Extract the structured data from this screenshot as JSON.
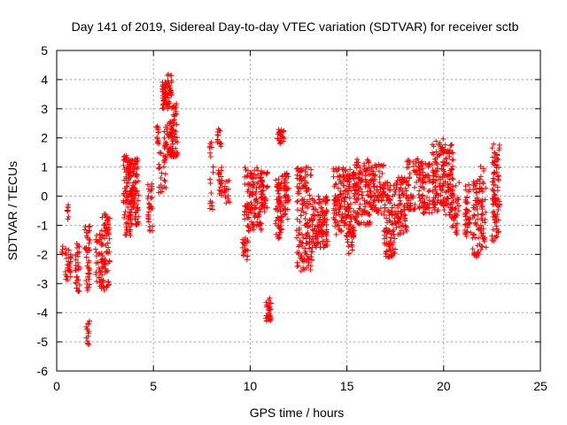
{
  "chart_data": {
    "type": "scatter",
    "title": "Day 141 of 2019, Sidereal Day-to-day VTEC variation (SDTVAR) for receiver sctb",
    "xlabel": "GPS time / hours",
    "ylabel": "SDTVAR / TECUs",
    "xlim": [
      0,
      25
    ],
    "ylim": [
      -6,
      5
    ],
    "xticks": [
      0,
      5,
      10,
      15,
      20,
      25
    ],
    "yticks": [
      -6,
      -5,
      -4,
      -3,
      -2,
      -1,
      0,
      1,
      2,
      3,
      4,
      5
    ],
    "x_tick_labels": [
      "0",
      "5",
      "10",
      "15",
      "20",
      "25"
    ],
    "y_tick_labels": [
      "-6",
      "-5",
      "-4",
      "-3",
      "-2",
      "-1",
      "0",
      "1",
      "2",
      "3",
      "4",
      "5"
    ],
    "grid": true,
    "marker": "+",
    "color": "#ff0000",
    "series": [
      {
        "name": "SDTVAR",
        "clusters": [
          {
            "x0": 0.25,
            "x1": 0.35,
            "ymin": -2.0,
            "ymax": -1.7,
            "n": 4
          },
          {
            "x0": 0.45,
            "x1": 0.75,
            "ymin": -2.9,
            "ymax": -1.8,
            "n": 30
          },
          {
            "x0": 0.5,
            "x1": 0.65,
            "ymin": -0.8,
            "ymax": -0.3,
            "n": 8
          },
          {
            "x0": 0.95,
            "x1": 1.2,
            "ymin": -3.3,
            "ymax": -1.6,
            "n": 30
          },
          {
            "x0": 1.45,
            "x1": 1.75,
            "ymin": -3.3,
            "ymax": -1.0,
            "n": 40
          },
          {
            "x0": 1.5,
            "x1": 1.7,
            "ymin": -5.1,
            "ymax": -4.1,
            "n": 14
          },
          {
            "x0": 2.0,
            "x1": 2.4,
            "ymin": -3.2,
            "ymax": -1.3,
            "n": 40
          },
          {
            "x0": 2.3,
            "x1": 2.75,
            "ymin": -3.3,
            "ymax": -0.6,
            "n": 70
          },
          {
            "x0": 3.45,
            "x1": 3.85,
            "ymin": -1.4,
            "ymax": 1.4,
            "n": 90
          },
          {
            "x0": 3.8,
            "x1": 4.25,
            "ymin": -1.0,
            "ymax": 1.3,
            "n": 90
          },
          {
            "x0": 4.7,
            "x1": 4.95,
            "ymin": -1.3,
            "ymax": 0.5,
            "n": 30
          },
          {
            "x0": 5.1,
            "x1": 5.3,
            "ymin": 1.7,
            "ymax": 2.4,
            "n": 12
          },
          {
            "x0": 5.25,
            "x1": 5.7,
            "ymin": 0.0,
            "ymax": 1.5,
            "n": 25
          },
          {
            "x0": 5.45,
            "x1": 5.95,
            "ymin": 3.0,
            "ymax": 4.2,
            "n": 70
          },
          {
            "x0": 5.55,
            "x1": 6.05,
            "ymin": 1.3,
            "ymax": 2.6,
            "n": 45
          },
          {
            "x0": 5.9,
            "x1": 6.25,
            "ymin": 1.3,
            "ymax": 3.2,
            "n": 50
          },
          {
            "x0": 7.9,
            "x1": 8.1,
            "ymin": -0.6,
            "ymax": 1.9,
            "n": 18
          },
          {
            "x0": 8.3,
            "x1": 8.5,
            "ymin": 1.7,
            "ymax": 2.4,
            "n": 14
          },
          {
            "x0": 8.35,
            "x1": 8.6,
            "ymin": -0.1,
            "ymax": 1.0,
            "n": 20
          },
          {
            "x0": 8.65,
            "x1": 8.95,
            "ymin": -0.3,
            "ymax": 0.6,
            "n": 16
          },
          {
            "x0": 9.6,
            "x1": 9.9,
            "ymin": -2.2,
            "ymax": -1.4,
            "n": 22
          },
          {
            "x0": 9.7,
            "x1": 10.6,
            "ymin": -1.2,
            "ymax": 1.0,
            "n": 120
          },
          {
            "x0": 10.55,
            "x1": 10.9,
            "ymin": -0.6,
            "ymax": 0.9,
            "n": 40
          },
          {
            "x0": 10.8,
            "x1": 11.1,
            "ymin": -4.3,
            "ymax": -3.5,
            "n": 28
          },
          {
            "x0": 11.3,
            "x1": 11.65,
            "ymin": -1.6,
            "ymax": 0.6,
            "n": 60
          },
          {
            "x0": 11.4,
            "x1": 11.75,
            "ymin": 1.8,
            "ymax": 2.3,
            "n": 28
          },
          {
            "x0": 11.6,
            "x1": 12.0,
            "ymin": -0.8,
            "ymax": 0.8,
            "n": 50
          },
          {
            "x0": 12.4,
            "x1": 13.2,
            "ymin": -2.6,
            "ymax": 1.0,
            "n": 150
          },
          {
            "x0": 13.2,
            "x1": 14.0,
            "ymin": -1.8,
            "ymax": 0.0,
            "n": 120
          },
          {
            "x0": 14.3,
            "x1": 15.4,
            "ymin": -1.4,
            "ymax": 1.0,
            "n": 170
          },
          {
            "x0": 15.0,
            "x1": 15.4,
            "ymin": -2.0,
            "ymax": -1.0,
            "n": 18
          },
          {
            "x0": 15.4,
            "x1": 16.2,
            "ymin": -1.0,
            "ymax": 1.3,
            "n": 120
          },
          {
            "x0": 16.2,
            "x1": 16.9,
            "ymin": -0.6,
            "ymax": 1.1,
            "n": 80
          },
          {
            "x0": 16.9,
            "x1": 17.5,
            "ymin": -2.1,
            "ymax": 0.5,
            "n": 100
          },
          {
            "x0": 17.5,
            "x1": 18.1,
            "ymin": -1.5,
            "ymax": 0.7,
            "n": 80
          },
          {
            "x0": 18.1,
            "x1": 18.8,
            "ymin": -0.5,
            "ymax": 1.3,
            "n": 60
          },
          {
            "x0": 18.8,
            "x1": 19.3,
            "ymin": -0.6,
            "ymax": 1.2,
            "n": 60
          },
          {
            "x0": 19.4,
            "x1": 20.0,
            "ymin": -0.6,
            "ymax": 2.0,
            "n": 100
          },
          {
            "x0": 20.0,
            "x1": 20.5,
            "ymin": -0.7,
            "ymax": 1.8,
            "n": 80
          },
          {
            "x0": 20.4,
            "x1": 20.8,
            "ymin": -1.3,
            "ymax": 0.5,
            "n": 40
          },
          {
            "x0": 21.1,
            "x1": 21.4,
            "ymin": -1.4,
            "ymax": 0.5,
            "n": 40
          },
          {
            "x0": 21.5,
            "x1": 21.9,
            "ymin": -2.1,
            "ymax": 0.7,
            "n": 60
          },
          {
            "x0": 21.9,
            "x1": 22.2,
            "ymin": -1.9,
            "ymax": 1.1,
            "n": 40
          },
          {
            "x0": 22.5,
            "x1": 22.9,
            "ymin": -1.6,
            "ymax": 1.8,
            "n": 90
          }
        ]
      }
    ]
  }
}
